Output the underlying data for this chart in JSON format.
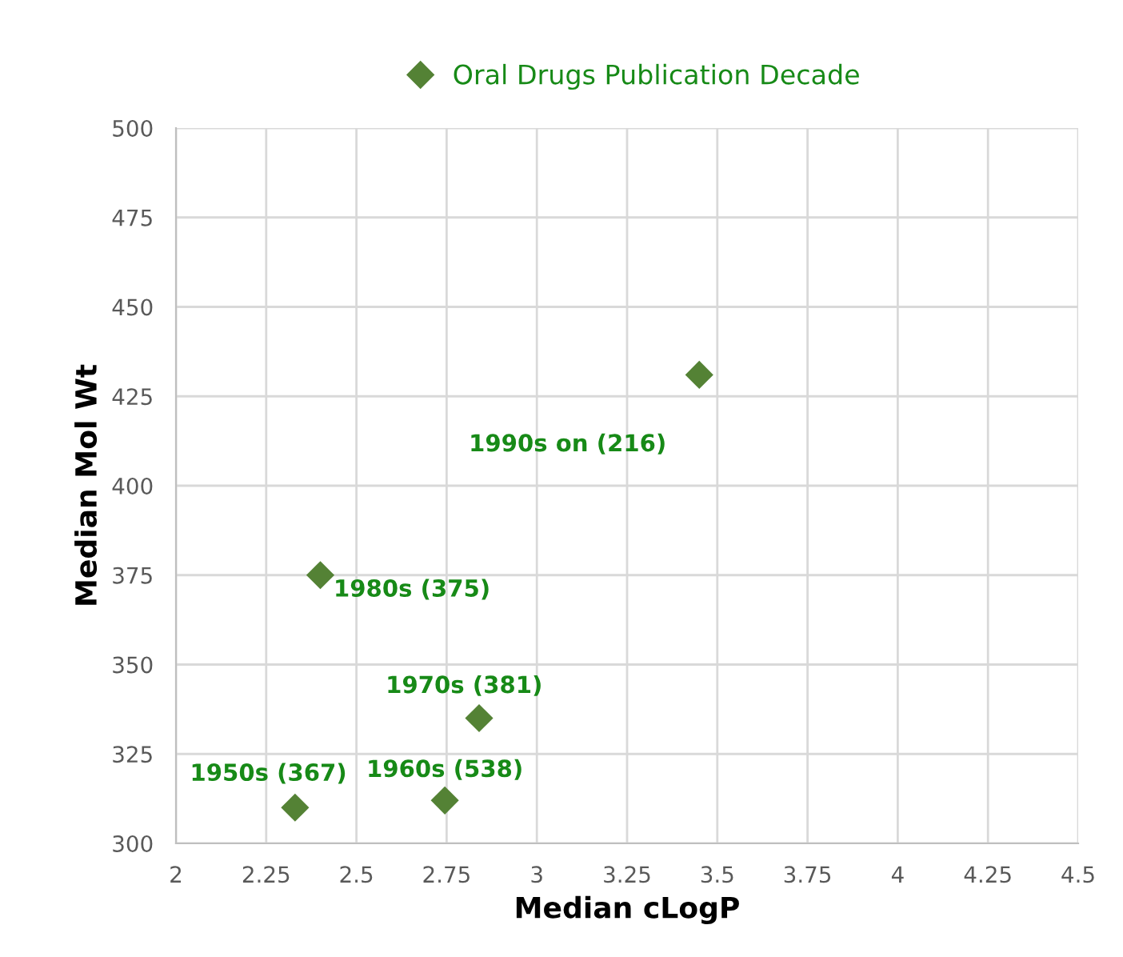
{
  "chart_data": {
    "type": "scatter",
    "xlabel": "Median cLogP",
    "ylabel": "Median Mol Wt",
    "series": [
      {
        "name": "Oral Drugs Publication Decade",
        "color": "#548235",
        "x": [
          2.33,
          2.745,
          2.84,
          2.4,
          3.45
        ],
        "values": [
          310,
          312,
          335,
          375,
          431
        ]
      }
    ],
    "annotations": [
      {
        "text": "1950s (367)",
        "x": 2.33,
        "y": 310
      },
      {
        "text": "1960s (538)",
        "x": 2.745,
        "y": 312
      },
      {
        "text": "1970s (381)",
        "x": 2.84,
        "y": 335
      },
      {
        "text": "1980s (375)",
        "x": 2.4,
        "y": 375
      },
      {
        "text": "1990s on (216)",
        "x": 3.45,
        "y": 431
      }
    ],
    "xlim": [
      2,
      4.5
    ],
    "xticks": [
      2,
      2.25,
      2.5,
      2.75,
      3,
      3.25,
      3.5,
      3.75,
      4,
      4.25,
      4.5
    ],
    "ylim": [
      300,
      500
    ],
    "yticks": [
      300,
      325,
      350,
      375,
      400,
      425,
      450,
      475,
      500
    ],
    "grid": true,
    "legend": "top",
    "marker": "diamond"
  }
}
